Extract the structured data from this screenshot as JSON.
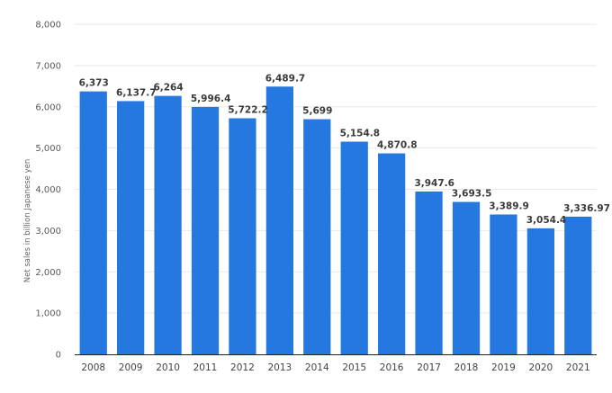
{
  "chart_data": {
    "type": "bar",
    "categories": [
      "2008",
      "2009",
      "2010",
      "2011",
      "2012",
      "2013",
      "2014",
      "2015",
      "2016",
      "2017",
      "2018",
      "2019",
      "2020",
      "2021"
    ],
    "values": [
      6373,
      6137.7,
      6264,
      5996.4,
      5722.2,
      6489.7,
      5699,
      5154.8,
      4870.8,
      3947.6,
      3693.5,
      3389.9,
      3054.4,
      3336.97
    ],
    "value_labels": [
      "6,373",
      "6,137.7",
      "6,264",
      "5,996.4",
      "5,722.2",
      "6,489.7",
      "5,699",
      "5,154.8",
      "4,870.8",
      "3,947.6",
      "3,693.5",
      "3,389.9",
      "3,054.4",
      "3,336.97"
    ],
    "ylabel": "Net sales in billion Japanese yen",
    "ylim": [
      0,
      8000
    ],
    "yticks": [
      0,
      1000,
      2000,
      3000,
      4000,
      5000,
      6000,
      7000,
      8000
    ],
    "ytick_labels": [
      "0",
      "1,000",
      "2,000",
      "3,000",
      "4,000",
      "5,000",
      "6,000",
      "7,000",
      "8,000"
    ],
    "grid": true,
    "bar_color": "#2478e0"
  }
}
